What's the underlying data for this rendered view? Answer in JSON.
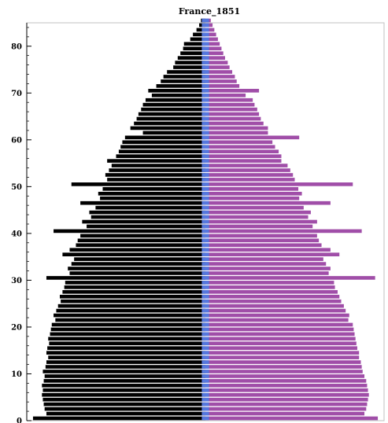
{
  "chart_data": {
    "type": "bar",
    "title": "France_1851",
    "orientation": "horizontal-population-pyramid",
    "ylim": [
      0,
      85
    ],
    "yticks": [
      0,
      10,
      20,
      30,
      40,
      50,
      60,
      70,
      80
    ],
    "grid": false,
    "ages": [
      0,
      1,
      2,
      3,
      4,
      5,
      6,
      7,
      8,
      9,
      10,
      11,
      12,
      13,
      14,
      15,
      16,
      17,
      18,
      19,
      20,
      21,
      22,
      23,
      24,
      25,
      26,
      27,
      28,
      29,
      30,
      31,
      32,
      33,
      34,
      35,
      36,
      37,
      38,
      39,
      40,
      41,
      42,
      43,
      44,
      45,
      46,
      47,
      48,
      49,
      50,
      51,
      52,
      53,
      54,
      55,
      56,
      57,
      58,
      59,
      60,
      61,
      62,
      63,
      64,
      65,
      66,
      67,
      68,
      69,
      70,
      71,
      72,
      73,
      74,
      75,
      76,
      77,
      78,
      79,
      80,
      81,
      82,
      83,
      84,
      85
    ],
    "series": [
      {
        "side": "left",
        "color": "#000000",
        "values": [
          193,
          178,
          180,
          181,
          182,
          183,
          182,
          183,
          181,
          180,
          182,
          179,
          178,
          176,
          178,
          177,
          175,
          176,
          174,
          173,
          172,
          168,
          170,
          167,
          165,
          162,
          163,
          160,
          158,
          157,
          178,
          152,
          154,
          150,
          147,
          160,
          152,
          145,
          143,
          140,
          170,
          133,
          138,
          128,
          130,
          123,
          140,
          118,
          120,
          115,
          150,
          110,
          112,
          108,
          105,
          110,
          100,
          97,
          95,
          93,
          90,
          70,
          84,
          80,
          77,
          75,
          72,
          70,
          67,
          60,
          64,
          55,
          50,
          47,
          43,
          36,
          34,
          31,
          28,
          25,
          24,
          17,
          14,
          10,
          7,
          5
        ]
      },
      {
        "side": "right",
        "color": "#a04ea8",
        "values": [
          193,
          178,
          180,
          181,
          182,
          183,
          182,
          181,
          180,
          178,
          176,
          175,
          174,
          172,
          172,
          170,
          169,
          168,
          167,
          166,
          165,
          160,
          161,
          157,
          155,
          152,
          150,
          148,
          145,
          144,
          190,
          138,
          140,
          135,
          132,
          150,
          140,
          130,
          127,
          125,
          175,
          120,
          125,
          115,
          118,
          110,
          140,
          105,
          108,
          104,
          165,
          100,
          98,
          95,
          92,
          85,
          85,
          82,
          78,
          75,
          105,
          70,
          70,
          65,
          62,
          60,
          58,
          55,
          53,
          45,
          60,
          38,
          35,
          33,
          30,
          27,
          25,
          22,
          20,
          18,
          16,
          14,
          12,
          10,
          8,
          6
        ]
      },
      {
        "side": "center",
        "color": "#5577dd",
        "values": [
          8,
          8,
          8,
          8,
          8,
          8,
          8,
          8,
          8,
          8,
          8,
          8,
          8,
          8,
          8,
          8,
          8,
          8,
          8,
          8,
          8,
          8,
          8,
          8,
          8,
          8,
          8,
          8,
          8,
          8,
          8,
          8,
          8,
          8,
          8,
          8,
          8,
          8,
          8,
          8,
          8,
          8,
          8,
          8,
          8,
          8,
          8,
          8,
          8,
          8,
          8,
          8,
          8,
          8,
          8,
          8,
          8,
          8,
          8,
          8,
          8,
          8,
          8,
          8,
          8,
          8,
          8,
          8,
          8,
          8,
          8,
          8,
          8,
          8,
          8,
          8,
          8,
          8,
          8,
          8,
          8,
          8,
          8,
          8,
          8,
          8
        ]
      }
    ],
    "xlim": [
      -200,
      200
    ]
  }
}
